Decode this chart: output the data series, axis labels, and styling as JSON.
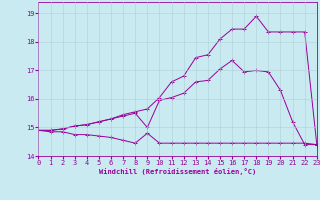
{
  "xlabel": "Windchill (Refroidissement éolien,°C)",
  "bg_color": "#c8eaf0",
  "grid_color": "#b0d0d8",
  "line_color": "#990099",
  "line1_x": [
    0,
    1,
    2,
    3,
    4,
    5,
    6,
    7,
    8,
    9,
    10,
    11,
    12,
    13,
    14,
    15,
    16,
    17,
    18,
    19,
    20,
    21,
    22,
    23
  ],
  "line1_y": [
    14.9,
    14.85,
    14.85,
    14.75,
    14.75,
    14.7,
    14.65,
    14.55,
    14.45,
    14.8,
    14.45,
    14.45,
    14.45,
    14.45,
    14.45,
    14.45,
    14.45,
    14.45,
    14.45,
    14.45,
    14.45,
    14.45,
    14.45,
    14.4
  ],
  "line2_x": [
    0,
    1,
    2,
    3,
    4,
    5,
    6,
    7,
    8,
    9,
    10,
    11,
    12,
    13,
    14,
    15,
    16,
    17,
    18,
    19,
    20,
    21,
    22,
    23
  ],
  "line2_y": [
    14.9,
    14.9,
    14.95,
    15.05,
    15.1,
    15.2,
    15.3,
    15.4,
    15.5,
    15.0,
    15.95,
    16.05,
    16.2,
    16.6,
    16.65,
    17.05,
    17.35,
    16.95,
    17.0,
    16.95,
    16.3,
    15.2,
    14.4,
    14.4
  ],
  "line3_x": [
    0,
    1,
    2,
    3,
    4,
    5,
    6,
    7,
    8,
    9,
    10,
    11,
    12,
    13,
    14,
    15,
    16,
    17,
    18,
    19,
    20,
    21,
    22,
    23
  ],
  "line3_y": [
    14.9,
    14.9,
    14.95,
    15.05,
    15.1,
    15.2,
    15.3,
    15.45,
    15.55,
    15.65,
    16.05,
    16.6,
    16.8,
    17.45,
    17.55,
    18.1,
    18.45,
    18.45,
    18.9,
    18.35,
    18.35,
    18.35,
    18.35,
    14.4
  ],
  "xlim": [
    0,
    23
  ],
  "ylim": [
    14.0,
    19.4
  ],
  "xticks": [
    0,
    1,
    2,
    3,
    4,
    5,
    6,
    7,
    8,
    9,
    10,
    11,
    12,
    13,
    14,
    15,
    16,
    17,
    18,
    19,
    20,
    21,
    22,
    23
  ],
  "yticks": [
    14,
    15,
    16,
    17,
    18,
    19
  ],
  "figsize": [
    3.2,
    2.0
  ],
  "dpi": 100
}
